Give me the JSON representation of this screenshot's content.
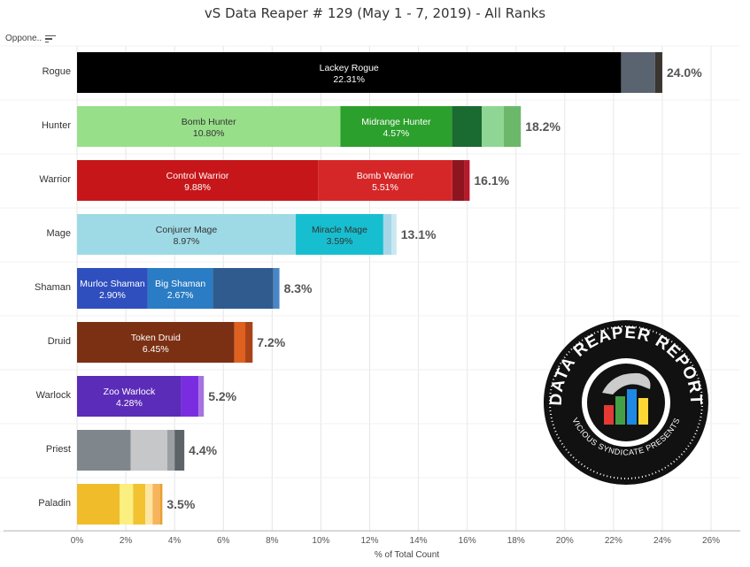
{
  "title": "vS Data Reaper # 129 (May 1 - 7, 2019) - All Ranks",
  "opponent_header": "Oppone..",
  "x_axis_title": "% of Total Count",
  "logo": {
    "text_top": "DATA REAPER REPORT",
    "text_bottom": "VICIOUS SYNDICATE PRESENTS"
  },
  "chart_data": {
    "type": "bar",
    "orientation": "horizontal-stacked",
    "title": "vS Data Reaper # 129 (May 1 - 7, 2019) - All Ranks",
    "xlabel": "% of Total Count",
    "ylabel": "",
    "xlim": [
      0,
      26
    ],
    "xticks": [
      "0%",
      "2%",
      "4%",
      "6%",
      "8%",
      "10%",
      "12%",
      "14%",
      "16%",
      "18%",
      "20%",
      "22%",
      "24%",
      "26%"
    ],
    "categories": [
      "Rogue",
      "Hunter",
      "Warrior",
      "Mage",
      "Shaman",
      "Druid",
      "Warlock",
      "Priest",
      "Paladin"
    ],
    "totals": [
      "24.0%",
      "18.2%",
      "16.1%",
      "13.1%",
      "8.3%",
      "7.2%",
      "5.2%",
      "4.4%",
      "3.5%"
    ],
    "rows": [
      {
        "class": "Rogue",
        "total": 24.0,
        "segments": [
          {
            "name": "Lackey Rogue",
            "value": 22.31,
            "label": "22.31%",
            "color": "#000000",
            "text_color": "#ffffff"
          },
          {
            "name": "",
            "value": 1.39,
            "color": "#5a6470"
          },
          {
            "name": "",
            "value": 0.3,
            "color": "#3a3530"
          }
        ]
      },
      {
        "class": "Hunter",
        "total": 18.2,
        "segments": [
          {
            "name": "Bomb Hunter",
            "value": 10.8,
            "label": "10.80%",
            "color": "#98df8a",
            "text_color": "#333333"
          },
          {
            "name": "Midrange Hunter",
            "value": 4.57,
            "label": "4.57%",
            "color": "#2ca02c",
            "text_color": "#ffffff"
          },
          {
            "name": "",
            "value": 1.23,
            "color": "#1a6b32"
          },
          {
            "name": "",
            "value": 0.9,
            "color": "#8fd694"
          },
          {
            "name": "",
            "value": 0.7,
            "color": "#6bb86a"
          }
        ]
      },
      {
        "class": "Warrior",
        "total": 16.1,
        "segments": [
          {
            "name": "Control Warrior",
            "value": 9.88,
            "label": "9.88%",
            "color": "#c6161a",
            "text_color": "#ffffff"
          },
          {
            "name": "Bomb Warrior",
            "value": 5.51,
            "label": "5.51%",
            "color": "#d62728",
            "text_color": "#ffffff"
          },
          {
            "name": "",
            "value": 0.5,
            "color": "#8e1520"
          },
          {
            "name": "",
            "value": 0.21,
            "color": "#b8192a"
          }
        ]
      },
      {
        "class": "Mage",
        "total": 13.1,
        "segments": [
          {
            "name": "Conjurer Mage",
            "value": 8.97,
            "label": "8.97%",
            "color": "#9edae5",
            "text_color": "#333333"
          },
          {
            "name": "Miracle Mage",
            "value": 3.59,
            "label": "3.59%",
            "color": "#17becf",
            "text_color": "#333333"
          },
          {
            "name": "",
            "value": 0.34,
            "color": "#a7d6e8"
          },
          {
            "name": "",
            "value": 0.2,
            "color": "#c9e8f0"
          }
        ]
      },
      {
        "class": "Shaman",
        "total": 8.3,
        "segments": [
          {
            "name": "Murloc Shaman",
            "value": 2.9,
            "label": "2.90%",
            "color": "#2f4fbf",
            "text_color": "#ffffff"
          },
          {
            "name": "Big Shaman",
            "value": 2.67,
            "label": "2.67%",
            "color": "#2a7cc4",
            "text_color": "#ffffff"
          },
          {
            "name": "",
            "value": 2.48,
            "color": "#2f5b8e"
          },
          {
            "name": "",
            "value": 0.25,
            "color": "#4a86c5"
          }
        ]
      },
      {
        "class": "Druid",
        "total": 7.2,
        "segments": [
          {
            "name": "Token Druid",
            "value": 6.45,
            "label": "6.45%",
            "color": "#7b3014",
            "text_color": "#ffffff"
          },
          {
            "name": "",
            "value": 0.45,
            "color": "#e06020"
          },
          {
            "name": "",
            "value": 0.3,
            "color": "#a84318"
          }
        ]
      },
      {
        "class": "Warlock",
        "total": 5.2,
        "segments": [
          {
            "name": "Zoo Warlock",
            "value": 4.28,
            "label": "4.28%",
            "color": "#5b2cb8",
            "text_color": "#ffffff"
          },
          {
            "name": "",
            "value": 0.7,
            "color": "#7a2de0"
          },
          {
            "name": "",
            "value": 0.22,
            "color": "#a573e0"
          }
        ]
      },
      {
        "class": "Priest",
        "total": 4.4,
        "segments": [
          {
            "name": "",
            "value": 2.2,
            "color": "#7f878c"
          },
          {
            "name": "",
            "value": 1.5,
            "color": "#c5c7c8"
          },
          {
            "name": "",
            "value": 0.3,
            "color": "#9aa0a3"
          },
          {
            "name": "",
            "value": 0.4,
            "color": "#5d6468"
          }
        ]
      },
      {
        "class": "Paladin",
        "total": 3.5,
        "segments": [
          {
            "name": "",
            "value": 1.75,
            "color": "#f0bc2a"
          },
          {
            "name": "",
            "value": 0.55,
            "color": "#fbef80"
          },
          {
            "name": "",
            "value": 0.5,
            "color": "#f2c230"
          },
          {
            "name": "",
            "value": 0.3,
            "color": "#fde5a0"
          },
          {
            "name": "",
            "value": 0.3,
            "color": "#f7b45a"
          },
          {
            "name": "",
            "value": 0.1,
            "color": "#e8a030"
          }
        ]
      }
    ],
    "grid": true,
    "legend": "none"
  }
}
